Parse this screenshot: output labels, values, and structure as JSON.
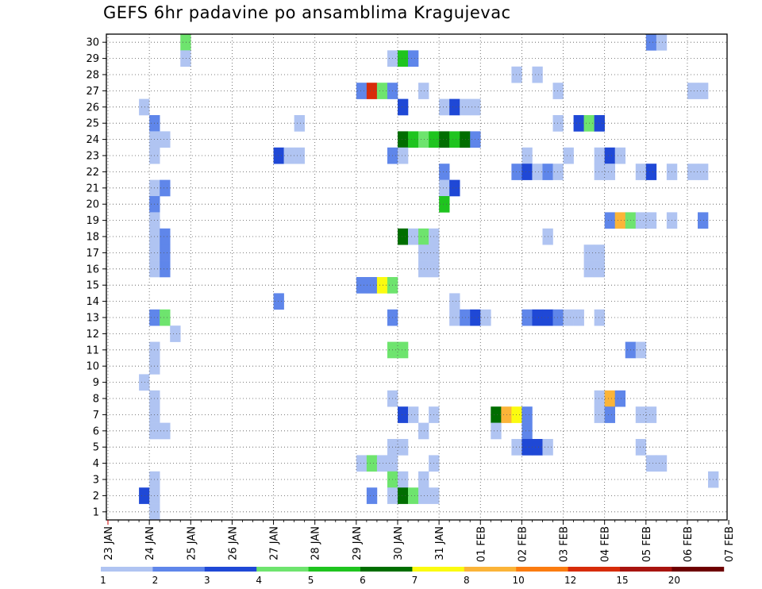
{
  "title": "GEFS 6hr padavine po ansamblima Kragujevac",
  "colors": {
    "1": "#b0c4f2",
    "2": "#5f86ea",
    "3": "#1f48d6",
    "4": "#6ee46e",
    "5": "#1fc41f",
    "6": "#006e00",
    "7": "#fbfb10",
    "8": "#fbb438",
    "10": "#fb7c10",
    "12": "#d72c0a",
    "15": "#a8140f",
    "20": "#6e0000"
  },
  "chart_data": {
    "type": "heatmap",
    "title": "GEFS 6hr padavine po ansamblima Kragujevac",
    "x_tick_labels": [
      "23 JAN",
      "24 JAN",
      "25 JAN",
      "26 JAN",
      "27 JAN",
      "28 JAN",
      "29 JAN",
      "30 JAN",
      "31 JAN",
      "01 FEB",
      "02 FEB",
      "03 FEB",
      "04 FEB",
      "05 FEB",
      "06 FEB",
      "07 FEB"
    ],
    "y_tick_labels": [
      "1",
      "2",
      "3",
      "4",
      "5",
      "6",
      "7",
      "8",
      "9",
      "10",
      "11",
      "12",
      "13",
      "14",
      "15",
      "16",
      "17",
      "18",
      "19",
      "20",
      "21",
      "22",
      "23",
      "24",
      "25",
      "26",
      "27",
      "28",
      "29",
      "30"
    ],
    "step_hours": 6,
    "legend_ticks": [
      "1",
      "2",
      "3",
      "4",
      "5",
      "6",
      "7",
      "8",
      "10",
      "12",
      "15",
      "20"
    ],
    "grid": true,
    "cells": [
      [
        30,
        "24 JAN",
        18,
        4
      ],
      [
        30,
        "05 FEB",
        0,
        2
      ],
      [
        30,
        "05 FEB",
        6,
        1
      ],
      [
        30,
        "07 FEB",
        0,
        2
      ],
      [
        29,
        "24 JAN",
        18,
        1
      ],
      [
        29,
        "29 JAN",
        18,
        1
      ],
      [
        29,
        "30 JAN",
        0,
        5
      ],
      [
        29,
        "30 JAN",
        6,
        2
      ],
      [
        28,
        "01 FEB",
        18,
        1
      ],
      [
        28,
        "02 FEB",
        6,
        1
      ],
      [
        27,
        "29 JAN",
        0,
        2
      ],
      [
        27,
        "29 JAN",
        6,
        12
      ],
      [
        27,
        "29 JAN",
        12,
        4
      ],
      [
        27,
        "29 JAN",
        18,
        2
      ],
      [
        27,
        "30 JAN",
        12,
        1
      ],
      [
        27,
        "02 FEB",
        18,
        1
      ],
      [
        27,
        "06 FEB",
        0,
        1
      ],
      [
        27,
        "06 FEB",
        6,
        1
      ],
      [
        27,
        "07 FEB",
        0,
        1
      ],
      [
        26,
        "23 JAN",
        18,
        1
      ],
      [
        26,
        "30 JAN",
        0,
        3
      ],
      [
        26,
        "31 JAN",
        0,
        1
      ],
      [
        26,
        "31 JAN",
        6,
        3
      ],
      [
        26,
        "31 JAN",
        12,
        1
      ],
      [
        26,
        "31 JAN",
        18,
        1
      ],
      [
        25,
        "24 JAN",
        0,
        2
      ],
      [
        25,
        "27 JAN",
        12,
        1
      ],
      [
        25,
        "02 FEB",
        18,
        1
      ],
      [
        25,
        "03 FEB",
        6,
        3
      ],
      [
        25,
        "03 FEB",
        12,
        4
      ],
      [
        25,
        "03 FEB",
        18,
        3
      ],
      [
        24,
        "24 JAN",
        0,
        1
      ],
      [
        24,
        "24 JAN",
        6,
        1
      ],
      [
        24,
        "30 JAN",
        0,
        6
      ],
      [
        24,
        "30 JAN",
        6,
        5
      ],
      [
        24,
        "30 JAN",
        12,
        4
      ],
      [
        24,
        "30 JAN",
        18,
        5
      ],
      [
        24,
        "31 JAN",
        0,
        6
      ],
      [
        24,
        "31 JAN",
        6,
        5
      ],
      [
        24,
        "31 JAN",
        12,
        6
      ],
      [
        24,
        "31 JAN",
        18,
        2
      ],
      [
        23,
        "24 JAN",
        0,
        1
      ],
      [
        23,
        "27 JAN",
        0,
        3
      ],
      [
        23,
        "27 JAN",
        6,
        1
      ],
      [
        23,
        "27 JAN",
        12,
        1
      ],
      [
        23,
        "29 JAN",
        18,
        2
      ],
      [
        23,
        "30 JAN",
        0,
        1
      ],
      [
        23,
        "02 FEB",
        0,
        1
      ],
      [
        23,
        "03 FEB",
        0,
        1
      ],
      [
        23,
        "03 FEB",
        18,
        1
      ],
      [
        23,
        "04 FEB",
        0,
        3
      ],
      [
        23,
        "04 FEB",
        6,
        1
      ],
      [
        22,
        "31 JAN",
        0,
        2
      ],
      [
        22,
        "01 FEB",
        18,
        2
      ],
      [
        22,
        "02 FEB",
        0,
        3
      ],
      [
        22,
        "02 FEB",
        6,
        1
      ],
      [
        22,
        "02 FEB",
        12,
        2
      ],
      [
        22,
        "02 FEB",
        18,
        1
      ],
      [
        22,
        "03 FEB",
        18,
        1
      ],
      [
        22,
        "04 FEB",
        0,
        1
      ],
      [
        22,
        "04 FEB",
        18,
        1
      ],
      [
        22,
        "05 FEB",
        0,
        3
      ],
      [
        22,
        "05 FEB",
        12,
        1
      ],
      [
        22,
        "06 FEB",
        0,
        1
      ],
      [
        22,
        "06 FEB",
        6,
        1
      ],
      [
        21,
        "24 JAN",
        0,
        1
      ],
      [
        21,
        "24 JAN",
        6,
        2
      ],
      [
        21,
        "31 JAN",
        0,
        1
      ],
      [
        21,
        "31 JAN",
        6,
        3
      ],
      [
        20,
        "24 JAN",
        0,
        2
      ],
      [
        20,
        "31 JAN",
        0,
        5
      ],
      [
        19,
        "24 JAN",
        0,
        1
      ],
      [
        19,
        "04 FEB",
        0,
        2
      ],
      [
        19,
        "04 FEB",
        6,
        8
      ],
      [
        19,
        "04 FEB",
        12,
        4
      ],
      [
        19,
        "04 FEB",
        18,
        1
      ],
      [
        19,
        "05 FEB",
        0,
        1
      ],
      [
        19,
        "05 FEB",
        12,
        1
      ],
      [
        19,
        "06 FEB",
        6,
        2
      ],
      [
        19,
        "07 FEB",
        0,
        2
      ],
      [
        18,
        "24 JAN",
        0,
        1
      ],
      [
        18,
        "24 JAN",
        6,
        2
      ],
      [
        18,
        "30 JAN",
        0,
        6
      ],
      [
        18,
        "30 JAN",
        6,
        1
      ],
      [
        18,
        "30 JAN",
        12,
        4
      ],
      [
        18,
        "30 JAN",
        18,
        1
      ],
      [
        18,
        "02 FEB",
        12,
        1
      ],
      [
        17,
        "24 JAN",
        0,
        1
      ],
      [
        17,
        "24 JAN",
        6,
        2
      ],
      [
        17,
        "30 JAN",
        12,
        1
      ],
      [
        17,
        "30 JAN",
        18,
        1
      ],
      [
        17,
        "03 FEB",
        12,
        1
      ],
      [
        17,
        "03 FEB",
        18,
        1
      ],
      [
        16,
        "24 JAN",
        0,
        1
      ],
      [
        16,
        "24 JAN",
        6,
        2
      ],
      [
        16,
        "30 JAN",
        12,
        1
      ],
      [
        16,
        "30 JAN",
        18,
        1
      ],
      [
        16,
        "03 FEB",
        12,
        1
      ],
      [
        16,
        "03 FEB",
        18,
        1
      ],
      [
        15,
        "29 JAN",
        0,
        2
      ],
      [
        15,
        "29 JAN",
        6,
        2
      ],
      [
        15,
        "29 JAN",
        12,
        7
      ],
      [
        15,
        "29 JAN",
        18,
        4
      ],
      [
        14,
        "27 JAN",
        0,
        2
      ],
      [
        14,
        "31 JAN",
        6,
        1
      ],
      [
        13,
        "24 JAN",
        0,
        2
      ],
      [
        13,
        "24 JAN",
        6,
        4
      ],
      [
        13,
        "29 JAN",
        18,
        2
      ],
      [
        13,
        "31 JAN",
        6,
        1
      ],
      [
        13,
        "31 JAN",
        12,
        2
      ],
      [
        13,
        "31 JAN",
        18,
        3
      ],
      [
        13,
        "01 FEB",
        0,
        1
      ],
      [
        13,
        "02 FEB",
        0,
        2
      ],
      [
        13,
        "02 FEB",
        6,
        3
      ],
      [
        13,
        "02 FEB",
        12,
        3
      ],
      [
        13,
        "02 FEB",
        18,
        2
      ],
      [
        13,
        "03 FEB",
        0,
        1
      ],
      [
        13,
        "03 FEB",
        6,
        1
      ],
      [
        13,
        "03 FEB",
        18,
        1
      ],
      [
        12,
        "24 JAN",
        12,
        1
      ],
      [
        11,
        "24 JAN",
        0,
        1
      ],
      [
        11,
        "29 JAN",
        18,
        4
      ],
      [
        11,
        "30 JAN",
        0,
        4
      ],
      [
        11,
        "04 FEB",
        12,
        2
      ],
      [
        11,
        "04 FEB",
        18,
        1
      ],
      [
        10,
        "24 JAN",
        0,
        1
      ],
      [
        9,
        "23 JAN",
        18,
        1
      ],
      [
        8,
        "24 JAN",
        0,
        1
      ],
      [
        8,
        "29 JAN",
        18,
        1
      ],
      [
        8,
        "03 FEB",
        18,
        1
      ],
      [
        8,
        "04 FEB",
        0,
        8
      ],
      [
        8,
        "04 FEB",
        6,
        2
      ],
      [
        7,
        "24 JAN",
        0,
        1
      ],
      [
        7,
        "30 JAN",
        0,
        3
      ],
      [
        7,
        "30 JAN",
        6,
        1
      ],
      [
        7,
        "30 JAN",
        18,
        1
      ],
      [
        7,
        "01 FEB",
        6,
        6
      ],
      [
        7,
        "01 FEB",
        12,
        8
      ],
      [
        7,
        "01 FEB",
        18,
        7
      ],
      [
        7,
        "02 FEB",
        0,
        2
      ],
      [
        7,
        "03 FEB",
        18,
        1
      ],
      [
        7,
        "04 FEB",
        0,
        2
      ],
      [
        7,
        "04 FEB",
        18,
        1
      ],
      [
        7,
        "05 FEB",
        0,
        1
      ],
      [
        6,
        "24 JAN",
        0,
        1
      ],
      [
        6,
        "24 JAN",
        6,
        1
      ],
      [
        6,
        "30 JAN",
        12,
        1
      ],
      [
        6,
        "01 FEB",
        6,
        1
      ],
      [
        6,
        "02 FEB",
        0,
        2
      ],
      [
        5,
        "29 JAN",
        18,
        1
      ],
      [
        5,
        "30 JAN",
        0,
        1
      ],
      [
        5,
        "01 FEB",
        18,
        1
      ],
      [
        5,
        "02 FEB",
        0,
        3
      ],
      [
        5,
        "02 FEB",
        6,
        3
      ],
      [
        5,
        "02 FEB",
        12,
        1
      ],
      [
        5,
        "04 FEB",
        18,
        1
      ],
      [
        4,
        "29 JAN",
        0,
        1
      ],
      [
        4,
        "29 JAN",
        6,
        4
      ],
      [
        4,
        "29 JAN",
        12,
        1
      ],
      [
        4,
        "29 JAN",
        18,
        1
      ],
      [
        4,
        "30 JAN",
        18,
        1
      ],
      [
        4,
        "05 FEB",
        0,
        1
      ],
      [
        4,
        "05 FEB",
        6,
        1
      ],
      [
        3,
        "24 JAN",
        0,
        1
      ],
      [
        3,
        "29 JAN",
        18,
        4
      ],
      [
        3,
        "30 JAN",
        0,
        1
      ],
      [
        3,
        "30 JAN",
        12,
        1
      ],
      [
        3,
        "06 FEB",
        12,
        1
      ],
      [
        3,
        "07 FEB",
        0,
        4
      ],
      [
        2,
        "23 JAN",
        18,
        3
      ],
      [
        2,
        "24 JAN",
        0,
        1
      ],
      [
        2,
        "29 JAN",
        6,
        2
      ],
      [
        2,
        "29 JAN",
        18,
        1
      ],
      [
        2,
        "30 JAN",
        0,
        6
      ],
      [
        2,
        "30 JAN",
        6,
        4
      ],
      [
        2,
        "30 JAN",
        12,
        1
      ],
      [
        2,
        "30 JAN",
        18,
        1
      ],
      [
        1,
        "24 JAN",
        0,
        1
      ]
    ]
  }
}
